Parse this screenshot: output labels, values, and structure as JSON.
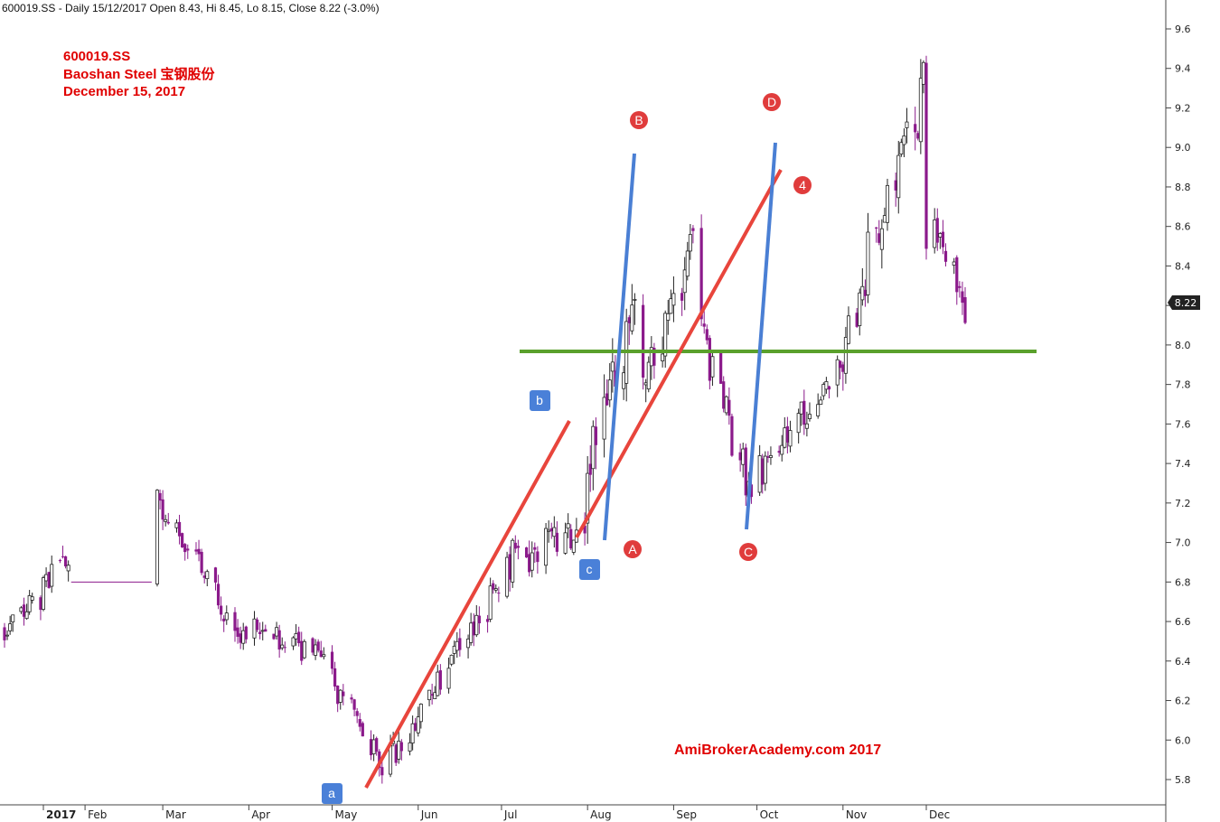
{
  "header": {
    "info_line": "600019.SS - Daily 15/12/2017 Open 8.43, Hi 8.45, Lo 8.15, Close 8.22 (-3.0%)"
  },
  "annotation": {
    "ticker": "600019.SS",
    "company": "Baoshan Steel  宝钢股份",
    "date": "December 15, 2017"
  },
  "watermark": "AmiBrokerAcademy.com  2017",
  "colors": {
    "up_candle": "#ffffff",
    "down_candle": "#8b1a8b",
    "trend_red": "#e8453c",
    "trend_blue": "#4a7fd4",
    "support_green": "#5aa02c",
    "marker_red": "#e03c3c",
    "marker_blue": "#4a80d8"
  },
  "chart_data": {
    "type": "candlestick",
    "ylim": [
      5.7,
      9.7
    ],
    "y_ticks": [
      "5.8",
      "6.0",
      "6.2",
      "6.4",
      "6.6",
      "6.8",
      "7.0",
      "7.2",
      "7.4",
      "7.6",
      "7.8",
      "8.0",
      "8.2",
      "8.4",
      "8.6",
      "8.8",
      "9.0",
      "9.2",
      "9.4",
      "9.6"
    ],
    "x_labels": [
      "2017",
      "Feb",
      "Mar",
      "Apr",
      "May",
      "Jun",
      "Jul",
      "Aug",
      "Sep",
      "Oct",
      "Nov",
      "Dec"
    ],
    "last_close": "8.22",
    "support_level": 7.97,
    "markers_circle": [
      "A",
      "B",
      "C",
      "D",
      "4"
    ],
    "markers_box": [
      "a",
      "b",
      "c"
    ],
    "series": [
      {
        "name": "600019.SS",
        "segments": [
          {
            "start": "2017-01-03",
            "end": "2017-01-26",
            "from": 6.55,
            "to": 6.9,
            "vol": 0.08,
            "seed": 3
          },
          {
            "start": "2017-01-27",
            "end": "2017-02-25",
            "flat": 6.8
          },
          {
            "start": "2017-02-27",
            "end": "2017-03-31",
            "from": 7.2,
            "to": 6.5,
            "vol": 0.08,
            "seed": 11
          },
          {
            "start": "2017-04-01",
            "end": "2017-04-30",
            "from": 6.6,
            "to": 6.4,
            "vol": 0.07,
            "seed": 19
          },
          {
            "start": "2017-05-01",
            "end": "2017-05-19",
            "from": 6.3,
            "to": 5.85,
            "vol": 0.07,
            "seed": 23
          },
          {
            "start": "2017-05-20",
            "end": "2017-06-30",
            "from": 5.9,
            "to": 6.8,
            "vol": 0.08,
            "seed": 29
          },
          {
            "start": "2017-07-01",
            "end": "2017-07-31",
            "from": 6.9,
            "to": 7.05,
            "vol": 0.1,
            "seed": 31
          },
          {
            "start": "2017-08-01",
            "end": "2017-08-18",
            "from": 7.3,
            "to": 8.3,
            "vol": 0.18,
            "seed": 37
          },
          {
            "start": "2017-08-19",
            "end": "2017-09-10",
            "from": 7.7,
            "to": 8.6,
            "vol": 0.14,
            "seed": 41
          },
          {
            "start": "2017-09-11",
            "end": "2017-09-29",
            "from": 8.1,
            "to": 7.2,
            "vol": 0.1,
            "seed": 43
          },
          {
            "start": "2017-09-30",
            "end": "2017-10-31",
            "from": 7.35,
            "to": 7.9,
            "vol": 0.09,
            "seed": 47
          },
          {
            "start": "2017-11-01",
            "end": "2017-11-30",
            "from": 8.0,
            "to": 9.3,
            "vol": 0.14,
            "seed": 53
          },
          {
            "start": "2017-12-01",
            "end": "2017-12-15",
            "from": 8.6,
            "to": 8.22,
            "vol": 0.12,
            "seed": 59
          }
        ]
      }
    ]
  }
}
